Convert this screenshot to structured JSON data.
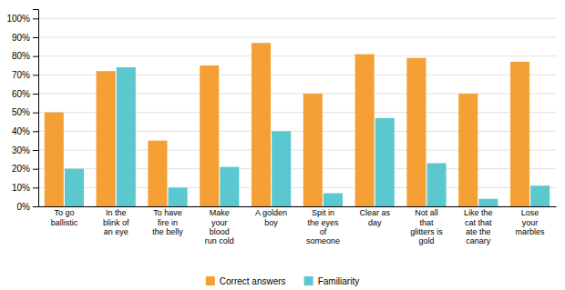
{
  "chart_data": {
    "type": "bar",
    "categories": [
      "To go\nballistic",
      "In the\nblink of\nan eye",
      "To have\nfire in\nthe belly",
      "Make\nyour\nblood\nrun cold",
      "A golden\nboy",
      "Spit in\nthe eyes\nof\nsomeone",
      "Clear as\nday",
      "Not all\nthat\nglitters is\ngold",
      "Like the\ncat that\nate the\ncanary",
      "Lose\nyour\nmarbles"
    ],
    "series": [
      {
        "name": "Correct answers",
        "color": "#F4A035",
        "values": [
          50,
          72,
          35,
          75,
          87,
          60,
          81,
          79,
          60,
          77
        ]
      },
      {
        "name": "Familiarity",
        "color": "#5BC8D0",
        "values": [
          20,
          74,
          10,
          21,
          40,
          7,
          47,
          23,
          4,
          11
        ]
      }
    ],
    "ylim": [
      0,
      105
    ],
    "yticks": [
      {
        "value": 0,
        "label": "0%"
      },
      {
        "value": 10,
        "label": "10%"
      },
      {
        "value": 20,
        "label": "20%"
      },
      {
        "value": 30,
        "label": "30%"
      },
      {
        "value": 40,
        "label": "40%"
      },
      {
        "value": 50,
        "label": "50%"
      },
      {
        "value": 60,
        "label": "60%"
      },
      {
        "value": 70,
        "label": "70%"
      },
      {
        "value": 80,
        "label": "80%"
      },
      {
        "value": 90,
        "label": "90%"
      },
      {
        "value": 100,
        "label": "100%"
      }
    ],
    "grid": true,
    "legend": "bottom"
  }
}
